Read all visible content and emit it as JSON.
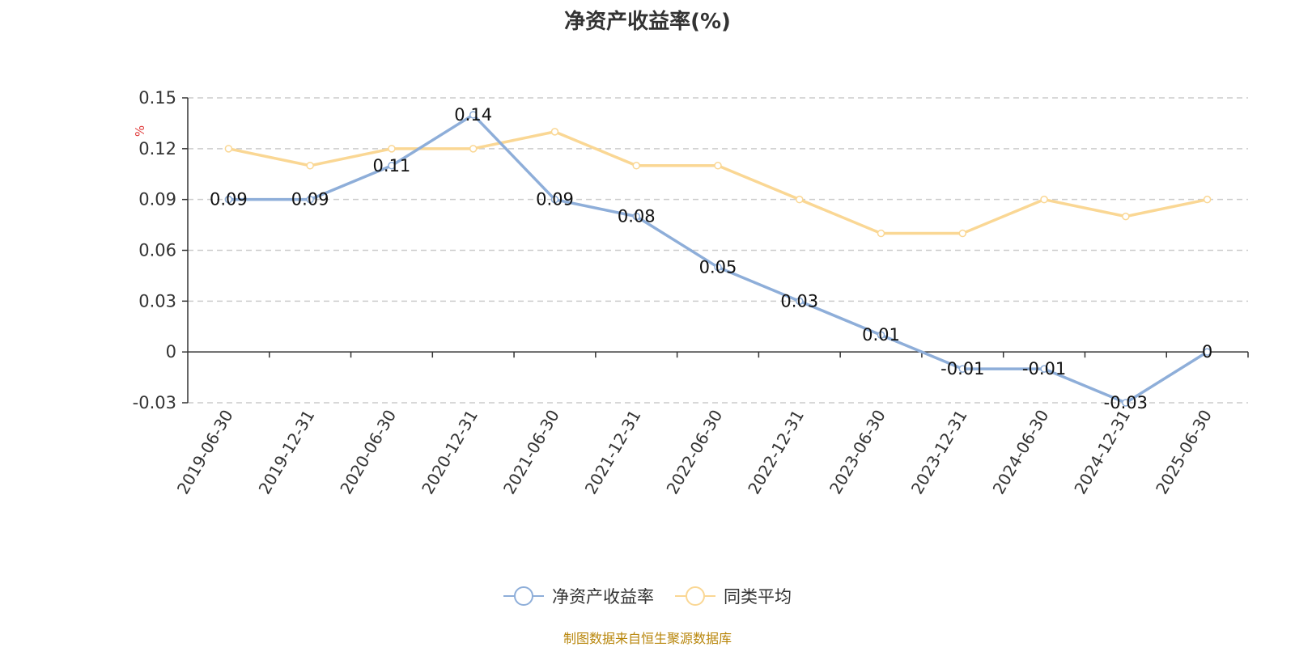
{
  "source_note": "制图数据来自恒生聚源数据库",
  "chart_data": {
    "type": "line",
    "title": "净资产收益率(%)",
    "ylabel": "%",
    "xlabel": "",
    "ylim": [
      -0.03,
      0.15
    ],
    "yticks": [
      "0.15",
      "0.12",
      "0.09",
      "0.06",
      "0.03",
      "0",
      "-0.03"
    ],
    "ytick_values": [
      0.15,
      0.12,
      0.09,
      0.06,
      0.03,
      0,
      -0.03
    ],
    "grid": true,
    "legend_position": "bottom",
    "categories": [
      "2019-06-30",
      "2019-12-31",
      "2020-06-30",
      "2020-12-31",
      "2021-06-30",
      "2021-12-31",
      "2022-06-30",
      "2022-12-31",
      "2023-06-30",
      "2023-12-31",
      "2024-06-30",
      "2024-12-31",
      "2025-06-30"
    ],
    "series": [
      {
        "name": "净资产收益率",
        "color": "#8eaed9",
        "values": [
          0.09,
          0.09,
          0.11,
          0.14,
          0.09,
          0.08,
          0.05,
          0.03,
          0.01,
          -0.01,
          -0.01,
          -0.03,
          0
        ],
        "data_labels": [
          "0.09",
          "0.09",
          "0.11",
          "0.14",
          "0.09",
          "0.08",
          "0.05",
          "0.03",
          "0.01",
          "-0.01",
          "-0.01",
          "-0.03",
          "0"
        ]
      },
      {
        "name": "同类平均",
        "color": "#fad794",
        "values": [
          0.12,
          0.11,
          0.12,
          0.12,
          0.13,
          0.11,
          0.11,
          0.09,
          0.07,
          0.07,
          0.09,
          0.08,
          0.09
        ]
      }
    ]
  }
}
